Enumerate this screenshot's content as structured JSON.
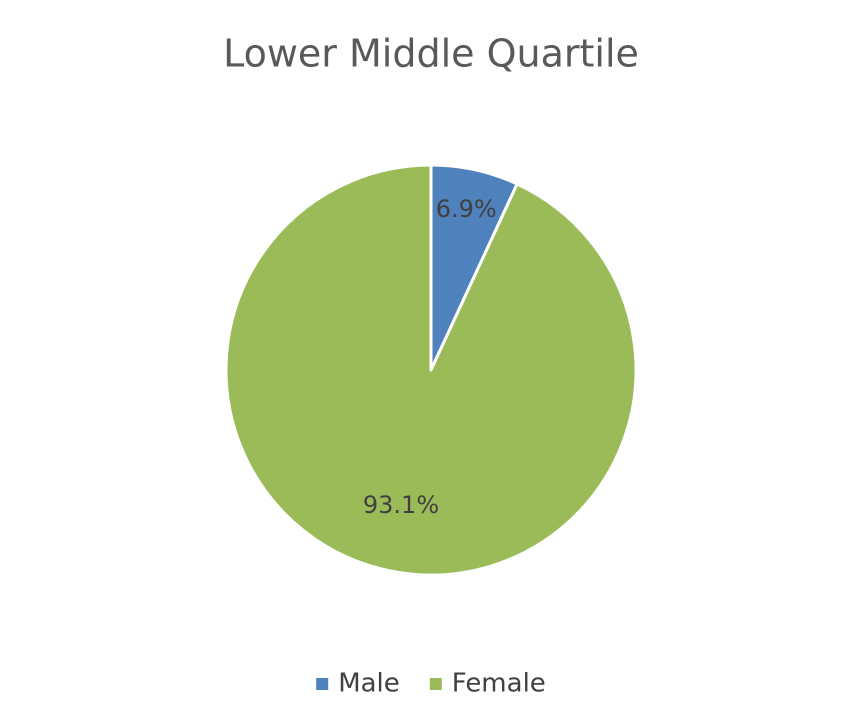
{
  "chart_data": {
    "type": "pie",
    "title": "Lower Middle Quartile",
    "categories": [
      "Male",
      "Female"
    ],
    "values": [
      6.9,
      93.1
    ],
    "value_labels": [
      "6.9%",
      "93.1%"
    ],
    "colors": [
      "#4f81bd",
      "#9bbb59"
    ],
    "legend": "bottom"
  }
}
